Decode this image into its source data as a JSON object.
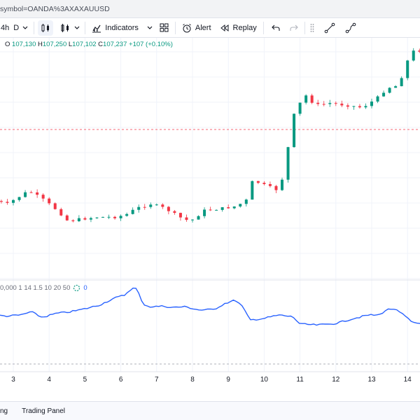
{
  "browser": {
    "url": "symbol=OANDA%3AXAXAUUSD"
  },
  "toolbar": {
    "interval_label": "4h",
    "range_label": "D",
    "indicators_label": "Indicators",
    "alert_label": "Alert",
    "replay_label": "Replay"
  },
  "legend": {
    "open_label": "O",
    "open_value": "107,130",
    "high_label": "H",
    "high_value": "107,250",
    "low_label": "L",
    "low_value": "107,102",
    "close_label": "C",
    "close_value": "107,237",
    "change": "+107 (+0.10%)"
  },
  "indicator": {
    "params": "0,000 1 14 1.5 10 20 50",
    "value": "0"
  },
  "x_axis": {
    "ticks": [
      "3",
      "4",
      "5",
      "6",
      "7",
      "8",
      "9",
      "10",
      "11",
      "12",
      "13",
      "14"
    ]
  },
  "bottom_panel": {
    "left_label": "ng",
    "trading_panel_label": "Trading Panel"
  },
  "colors": {
    "up": "#089981",
    "down": "#f23645",
    "line": "#2962ff",
    "grid": "#f0f3fa",
    "dash": "#f23645"
  },
  "chart_data": {
    "type": "candlestick_with_indicator",
    "x_ticks": [
      "3",
      "4",
      "5",
      "6",
      "7",
      "8",
      "9",
      "10",
      "11",
      "12",
      "13",
      "14"
    ],
    "price_path": [
      [
        2.5,
        0.7
      ],
      [
        3.0,
        0.72
      ],
      [
        3.3,
        0.69
      ],
      [
        3.6,
        0.66
      ],
      [
        4.0,
        0.7
      ],
      [
        4.4,
        0.75
      ],
      [
        4.7,
        0.8
      ],
      [
        5.0,
        0.79
      ],
      [
        5.5,
        0.78
      ],
      [
        6.0,
        0.78
      ],
      [
        6.3,
        0.77
      ],
      [
        6.6,
        0.74
      ],
      [
        7.0,
        0.72
      ],
      [
        7.4,
        0.74
      ],
      [
        7.8,
        0.78
      ],
      [
        8.1,
        0.8
      ],
      [
        8.5,
        0.75
      ],
      [
        9.0,
        0.74
      ],
      [
        9.4,
        0.73
      ],
      [
        9.7,
        0.7
      ],
      [
        9.85,
        0.61
      ],
      [
        10.1,
        0.63
      ],
      [
        10.6,
        0.66
      ],
      [
        10.8,
        0.5
      ],
      [
        10.95,
        0.33
      ],
      [
        11.1,
        0.28
      ],
      [
        11.3,
        0.22
      ],
      [
        11.6,
        0.27
      ],
      [
        12.0,
        0.26
      ],
      [
        12.5,
        0.27
      ],
      [
        12.9,
        0.28
      ],
      [
        13.3,
        0.24
      ],
      [
        13.6,
        0.19
      ],
      [
        13.9,
        0.18
      ],
      [
        14.1,
        0.1
      ],
      [
        14.2,
        0.05
      ],
      [
        14.35,
        0.02
      ]
    ],
    "indicator_path": [
      [
        2.5,
        0.55
      ],
      [
        2.8,
        0.58
      ],
      [
        3.2,
        0.55
      ],
      [
        3.5,
        0.45
      ],
      [
        3.8,
        0.62
      ],
      [
        4.2,
        0.5
      ],
      [
        4.6,
        0.45
      ],
      [
        5.0,
        0.36
      ],
      [
        5.4,
        0.25
      ],
      [
        5.8,
        0.05
      ],
      [
        6.1,
        -0.05
      ],
      [
        6.3,
        -0.25
      ],
      [
        6.45,
        -0.25
      ],
      [
        6.6,
        0.2
      ],
      [
        6.8,
        0.3
      ],
      [
        7.2,
        0.28
      ],
      [
        7.4,
        0.32
      ],
      [
        7.8,
        0.3
      ],
      [
        8.2,
        0.4
      ],
      [
        8.6,
        0.38
      ],
      [
        8.9,
        0.2
      ],
      [
        9.2,
        0.1
      ],
      [
        9.4,
        0.3
      ],
      [
        9.6,
        0.7
      ],
      [
        10.0,
        0.65
      ],
      [
        10.4,
        0.55
      ],
      [
        10.8,
        0.6
      ],
      [
        11.0,
        0.82
      ],
      [
        11.5,
        0.85
      ],
      [
        12.0,
        0.8
      ],
      [
        12.5,
        0.65
      ],
      [
        12.9,
        0.55
      ],
      [
        13.2,
        0.55
      ],
      [
        13.4,
        0.4
      ],
      [
        13.6,
        0.35
      ],
      [
        13.9,
        0.55
      ],
      [
        14.1,
        0.75
      ],
      [
        14.3,
        0.8
      ],
      [
        14.6,
        0.8
      ]
    ]
  }
}
